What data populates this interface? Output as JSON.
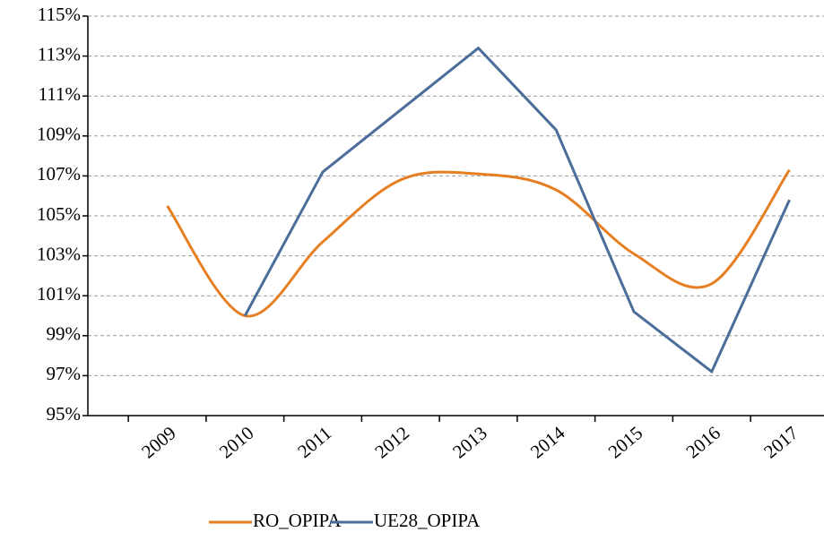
{
  "chart_data": {
    "type": "line",
    "categories": [
      "2009",
      "2010",
      "2011",
      "2012",
      "2013",
      "2014",
      "2015",
      "2016",
      "2017"
    ],
    "series": [
      {
        "name": "RO_OPIPA",
        "color": "#e67e22",
        "smooth": true,
        "values": [
          105.5,
          100.0,
          103.7,
          106.8,
          107.1,
          106.3,
          103.1,
          101.6,
          107.3
        ]
      },
      {
        "name": "UE28_OPIPA",
        "color": "#4a6e99",
        "smooth": false,
        "values": [
          null,
          100.0,
          107.2,
          110.3,
          113.4,
          109.3,
          100.2,
          97.2,
          105.8
        ]
      }
    ],
    "ylim": [
      95,
      115
    ],
    "yticks": [
      {
        "value": 95,
        "label": "95%"
      },
      {
        "value": 97,
        "label": "97%"
      },
      {
        "value": 99,
        "label": "99%"
      },
      {
        "value": 101,
        "label": "101%"
      },
      {
        "value": 103,
        "label": "103%"
      },
      {
        "value": 105,
        "label": "105%"
      },
      {
        "value": 107,
        "label": "107%"
      },
      {
        "value": 109,
        "label": "109%"
      },
      {
        "value": 111,
        "label": "111%"
      },
      {
        "value": 113,
        "label": "113%"
      },
      {
        "value": 115,
        "label": "115%"
      }
    ],
    "grid": true,
    "legend": "bottom"
  }
}
